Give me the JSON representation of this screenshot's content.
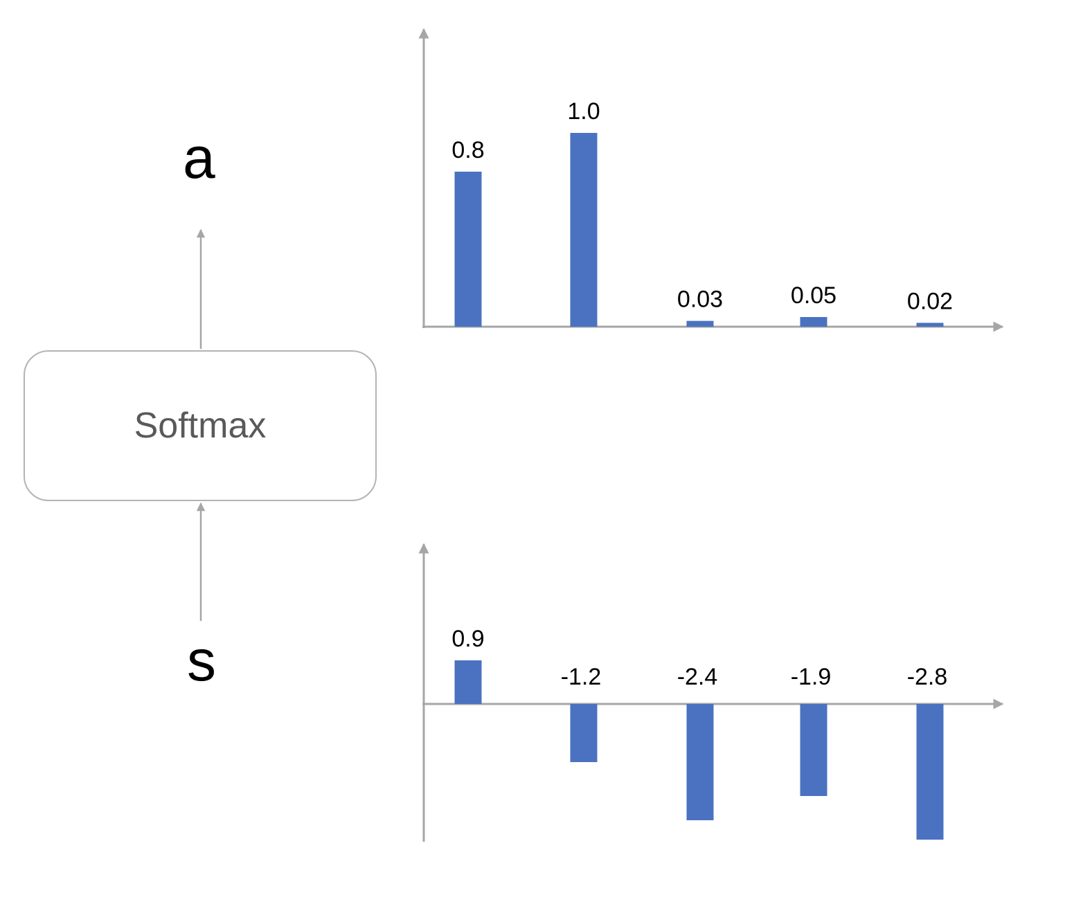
{
  "diagram": {
    "output_symbol": "a",
    "input_symbol": "s",
    "function_label": "Softmax"
  },
  "colors": {
    "bar": "#4a72c0",
    "axis": "#a6a6a6",
    "box_border": "#b3b3b3",
    "box_text": "#595959"
  },
  "chart_data": [
    {
      "type": "bar",
      "role": "output",
      "categories": [
        "",
        "",
        "",
        "",
        ""
      ],
      "values": [
        0.8,
        1.0,
        0.03,
        0.05,
        0.02
      ],
      "data_labels": [
        "0.8",
        "1.0",
        "0.03",
        "0.05",
        "0.02"
      ],
      "title": "",
      "xlabel": "",
      "ylabel": ""
    },
    {
      "type": "bar",
      "role": "input",
      "categories": [
        "",
        "",
        "",
        "",
        ""
      ],
      "values": [
        0.9,
        -1.2,
        -2.4,
        -1.9,
        -2.8
      ],
      "data_labels": [
        "0.9",
        "-1.2",
        "-2.4",
        "-1.9",
        "-2.8"
      ],
      "title": "",
      "xlabel": "",
      "ylabel": ""
    }
  ]
}
